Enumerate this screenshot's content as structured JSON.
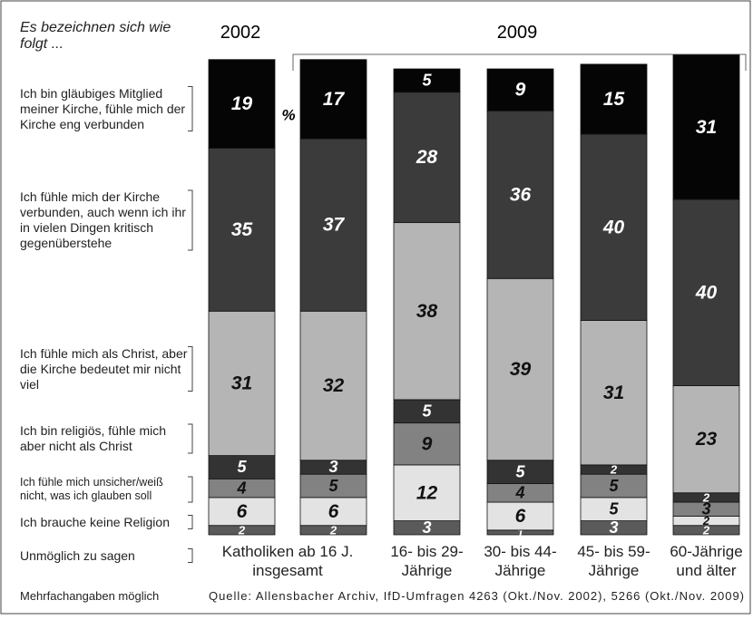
{
  "chart_data": {
    "type": "stacked-bar",
    "title": "Es bezeichnen sich wie folgt ...",
    "years": [
      "2002",
      "2009"
    ],
    "unit": "%",
    "categories": [
      "Katholiken ab 16 J. insgesamt",
      null,
      "16- bis 29-Jährige",
      "30- bis 44-Jährige",
      "45- bis 59-Jährige",
      "60-Jährige und älter"
    ],
    "series": [
      {
        "name": "Ich bin gläubiges Mitglied meiner Kirche, fühle mich der Kirche eng verbunden",
        "color": "#050505",
        "values": [
          19,
          17,
          5,
          9,
          15,
          31
        ]
      },
      {
        "name": "Ich fühle mich der Kirche verbunden, auch wenn ich ihr in vielen Dingen kritisch gegenüberstehe",
        "color": "#3b3b3b",
        "values": [
          35,
          37,
          28,
          36,
          40,
          40
        ]
      },
      {
        "name": "Ich fühle mich als Christ, aber die Kirche bedeutet mir nicht viel",
        "color": "#b5b5b5",
        "values": [
          31,
          32,
          38,
          39,
          31,
          23
        ]
      },
      {
        "name": "Ich bin religiös, fühle mich aber nicht als Christ",
        "color": "#333333",
        "values": [
          5,
          3,
          5,
          5,
          2,
          2
        ]
      },
      {
        "name": "Ich fühle mich unsicher/weiß nicht, was ich glauben soll",
        "color": "#828282",
        "values": [
          4,
          5,
          9,
          4,
          5,
          3
        ]
      },
      {
        "name": "Ich brauche keine Religion",
        "color": "#e3e3e3",
        "values": [
          6,
          6,
          12,
          6,
          5,
          2
        ]
      },
      {
        "name": "Unmöglich zu sagen",
        "color": "#5a5a5a",
        "values": [
          2,
          2,
          3,
          1,
          3,
          2
        ]
      }
    ],
    "notes": [
      "Mehrfachangaben möglich",
      "Quelle: Allensbacher Archiv, IfD-Umfragen 4263 (Okt./Nov. 2002), 5266 (Okt./Nov. 2009)"
    ]
  }
}
